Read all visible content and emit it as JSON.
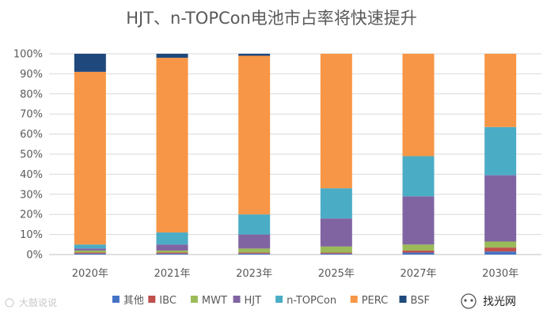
{
  "chart_data": {
    "type": "bar",
    "stacked": true,
    "percent": true,
    "title": "HJT、n-TOPCon电池市占率将快速提升",
    "categories": [
      "2020年",
      "2021年",
      "2023年",
      "2025年",
      "2027年",
      "2030年"
    ],
    "ylim": [
      0,
      100
    ],
    "yticks": [
      "0%",
      "10%",
      "20%",
      "30%",
      "40%",
      "50%",
      "60%",
      "70%",
      "80%",
      "90%",
      "100%"
    ],
    "grid": true,
    "legend_position": "bottom",
    "series": [
      {
        "name": "其他",
        "color": "#4472C4",
        "values": [
          0.5,
          0.5,
          0.5,
          0.5,
          1,
          1.5
        ]
      },
      {
        "name": "IBC",
        "color": "#C0504D",
        "values": [
          0.5,
          0.5,
          0.5,
          0.5,
          1,
          2
        ]
      },
      {
        "name": "MWT",
        "color": "#9BBB59",
        "values": [
          1,
          1,
          2,
          3,
          3,
          3
        ]
      },
      {
        "name": "HJT",
        "color": "#8064A2",
        "values": [
          1,
          3,
          7,
          14,
          24,
          33
        ]
      },
      {
        "name": "n-TOPCon",
        "color": "#4BACC6",
        "values": [
          2,
          6,
          10,
          15,
          20,
          24
        ]
      },
      {
        "name": "PERC",
        "color": "#F79646",
        "values": [
          86,
          87,
          79,
          67,
          51,
          36.5
        ]
      },
      {
        "name": "BSF",
        "color": "#1F497D",
        "values": [
          9,
          2,
          1,
          0,
          0,
          0
        ]
      }
    ]
  },
  "watermarks": {
    "left_text": "大鼓说说",
    "brand_text": "找光网"
  }
}
